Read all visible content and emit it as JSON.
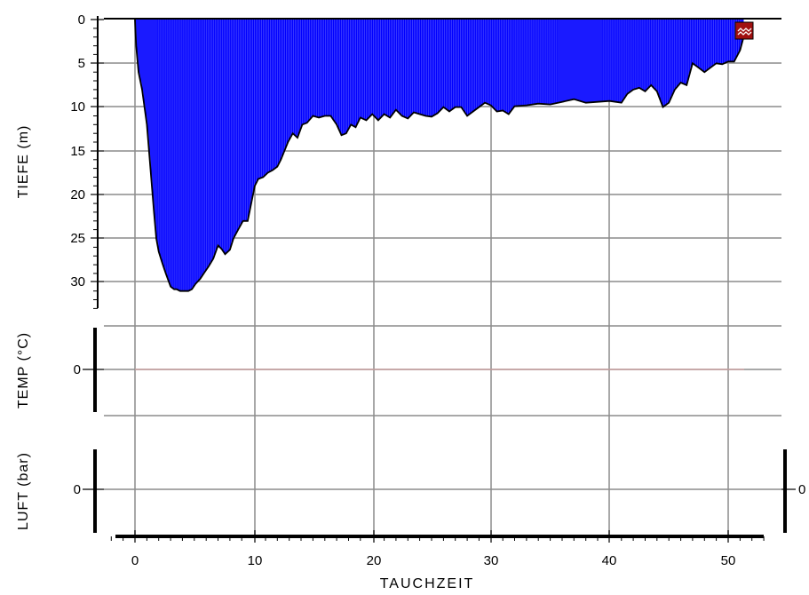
{
  "chart_data": {
    "type": "area",
    "xlabel": "TAUCHZEIT",
    "xlim": [
      -3.5,
      54
    ],
    "x_ticks": [
      "0",
      "10",
      "20",
      "30",
      "40",
      "50"
    ],
    "grid": true,
    "colors": {
      "depth_fill": "#0000ff",
      "depth_line": "#000000",
      "grid": "#8c8c8c",
      "temp_line": "#c8a0a0",
      "marker": "#a01010"
    },
    "panels": {
      "depth": {
        "ylabel": "TIEFE (m)",
        "ylim": [
          0,
          33
        ],
        "inverted": true,
        "y_ticks": [
          "0",
          "5",
          "10",
          "15",
          "20",
          "25",
          "30"
        ]
      },
      "temp": {
        "ylabel": "TEMP (°C)",
        "y_ticks": [
          "0"
        ]
      },
      "air": {
        "ylabel": "LUFT (bar)",
        "y_ticks": [
          "0"
        ],
        "right_ticks": [
          "0"
        ]
      }
    },
    "series": [
      {
        "x": [
          0,
          0.1,
          0.3,
          0.6,
          1.0,
          1.3,
          1.6,
          1.8,
          2.0,
          2.3,
          2.6,
          3.0,
          3.3,
          3.5,
          3.8,
          4.1,
          4.5,
          4.8,
          5.1,
          5.5,
          5.8,
          6.2,
          6.6,
          7.0,
          7.3,
          7.6,
          8.0,
          8.3,
          8.7,
          9.1,
          9.5,
          9.8,
          10.1,
          10.4,
          10.8,
          11.2,
          11.6,
          12.0,
          12.3,
          12.6,
          12.9,
          13.3,
          13.7,
          14.1,
          14.5,
          15.0,
          15.5,
          16.0,
          16.5,
          17.0,
          17.4,
          17.8,
          18.2,
          18.6,
          19.0,
          19.5,
          20.0,
          20.5,
          21.0,
          21.5,
          22.0,
          22.5,
          23.0,
          23.5,
          24.0,
          24.5,
          25.0,
          25.5,
          26.0,
          26.5,
          27.0,
          27.5,
          28.0,
          28.5,
          29.0,
          29.5,
          30.0,
          30.5,
          31.0,
          31.5,
          32.0,
          33.0,
          34.0,
          35.0,
          36.0,
          37.0,
          38.0,
          39.0,
          40.0,
          41.0,
          41.5,
          42.0,
          42.5,
          43.0,
          43.5,
          44.0,
          44.5,
          45.0,
          45.5,
          46.0,
          46.5,
          47.0,
          47.5,
          48.0,
          48.5,
          49.0,
          49.5,
          50.0,
          50.5,
          51.0,
          51.3
        ],
        "y": [
          0,
          3.0,
          6.0,
          8.0,
          12.0,
          17.0,
          22.0,
          25.0,
          26.5,
          27.8,
          29.0,
          30.5,
          30.8,
          30.8,
          31.0,
          31.0,
          31.0,
          30.8,
          30.2,
          29.6,
          29.0,
          28.2,
          27.3,
          25.8,
          26.2,
          26.8,
          26.3,
          25.0,
          24.0,
          23.0,
          23.0,
          21.0,
          19.0,
          18.2,
          18.0,
          17.5,
          17.2,
          16.8,
          16.0,
          15.0,
          14.0,
          13.0,
          13.5,
          12.0,
          11.8,
          11.0,
          11.2,
          11.0,
          11.0,
          12.0,
          13.2,
          13.0,
          12.0,
          12.3,
          11.2,
          11.5,
          10.8,
          11.5,
          10.8,
          11.2,
          10.3,
          11.0,
          11.3,
          10.6,
          10.8,
          11.0,
          11.1,
          10.7,
          10.0,
          10.5,
          10.0,
          10.0,
          11.0,
          10.5,
          10.0,
          9.5,
          9.8,
          10.5,
          10.4,
          10.8,
          9.9,
          9.8,
          9.6,
          9.7,
          9.4,
          9.1,
          9.5,
          9.4,
          9.3,
          9.5,
          8.5,
          8.0,
          7.8,
          8.2,
          7.5,
          8.2,
          10.0,
          9.5,
          8.0,
          7.2,
          7.5,
          5.0,
          5.5,
          6.0,
          5.5,
          5.0,
          5.1,
          4.8,
          4.8,
          3.5,
          2.0
        ]
      }
    ]
  }
}
